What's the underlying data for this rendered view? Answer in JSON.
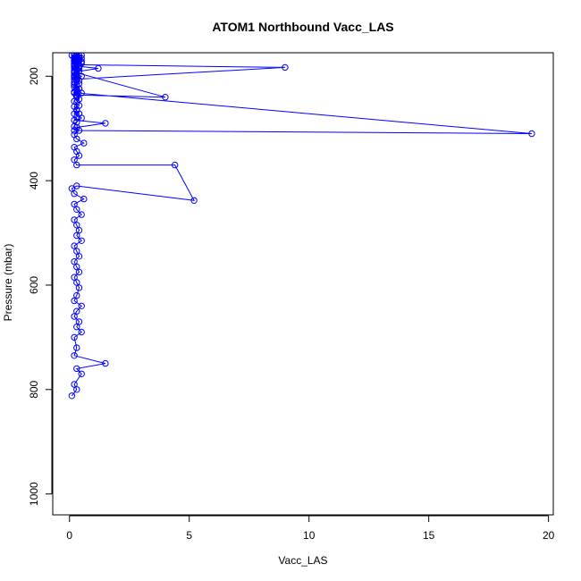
{
  "chart_data": {
    "type": "line",
    "title": "ATOM1 Northbound Vacc_LAS",
    "xlabel": "Vacc_LAS",
    "ylabel": "Pressure (mbar)",
    "xlim": [
      -0.7,
      20.2
    ],
    "ylim": [
      1040,
      155
    ],
    "y_inverted": true,
    "grid": false,
    "legend": "none",
    "x_ticks": [
      0,
      5,
      10,
      15,
      20
    ],
    "y_ticks": [
      200,
      400,
      600,
      800,
      1000
    ],
    "series_color": "#0000ff",
    "marker": "open-circle",
    "series": [
      {
        "x": [
          0.1,
          0.3,
          0.2,
          0.5,
          0.3,
          1.5,
          0.2,
          0.3,
          0.2,
          0.5,
          0.3,
          0.4,
          0.2,
          0.3,
          0.5,
          0.2,
          0.3,
          0.4,
          0.3,
          0.2,
          0.4,
          0.3,
          0.2,
          0.4,
          0.3,
          0.2,
          0.5,
          0.3,
          0.4,
          0.3,
          0.2,
          0.5,
          0.3,
          0.2,
          0.6,
          0.2,
          0.1,
          0.3,
          5.2,
          4.4,
          0.3,
          0.2,
          0.4,
          0.3,
          0.2,
          0.6,
          0.3,
          0.2,
          0.4,
          0.2,
          0.3,
          0.5,
          0.2,
          0.3,
          0.4,
          0.2,
          0.3,
          0.5,
          0.3,
          0.2,
          0.4,
          0.3,
          0.2,
          1.2,
          0.2,
          0.3,
          0.5,
          0.2,
          0.3,
          0.1,
          0.4,
          0.2,
          0.3,
          0.5,
          0.2,
          0.3,
          0.4,
          0.3,
          0.2,
          0.3,
          0.2,
          0.4,
          0.3,
          19.3,
          0.2,
          0.3,
          1.5,
          0.2,
          0.3,
          0.4,
          0.3,
          0.2,
          0.3,
          0.4,
          0.3,
          0.2,
          0.3,
          0.2,
          0.4,
          0.3,
          0.2,
          0.3,
          0.2,
          0.4,
          0.2,
          0.3,
          0.4,
          0.2,
          0.3,
          0.5,
          0.2,
          0.4,
          0.3,
          0.2,
          0.4,
          0.3,
          0.2,
          4.0,
          0.3,
          0.2,
          0.4,
          0.3,
          0.2,
          0.3,
          0.5,
          0.2,
          0.3,
          0.2,
          0.4,
          0.3,
          0.2,
          0.3,
          0.4,
          0.2,
          0.3,
          0.5,
          0.2,
          0.3,
          0.2,
          0.4,
          0.3,
          0.2,
          0.3,
          0.2,
          0.3,
          0.2,
          9.0,
          0.3,
          0.2,
          0.3,
          0.2,
          0.3,
          0.2,
          0.3
        ],
        "y": [
          812,
          800,
          790,
          770,
          760,
          750,
          735,
          720,
          700,
          690,
          680,
          670,
          660,
          650,
          640,
          630,
          620,
          605,
          595,
          585,
          575,
          565,
          555,
          545,
          535,
          525,
          515,
          505,
          495,
          485,
          475,
          465,
          455,
          445,
          435,
          425,
          415,
          410,
          438,
          370,
          370,
          360,
          352,
          344,
          336,
          328,
          320,
          312,
          304,
          296,
          288,
          280,
          272,
          264,
          256,
          248,
          240,
          232,
          224,
          216,
          208,
          200,
          192,
          185,
          180,
          176,
          172,
          168,
          165,
          160,
          160,
          165,
          170,
          175,
          180,
          186,
          190,
          196,
          200,
          208,
          216,
          224,
          232,
          310,
          304,
          298,
          290,
          284,
          278,
          272,
          266,
          258,
          250,
          244,
          238,
          232,
          226,
          220,
          214,
          208,
          202,
          196,
          190,
          184,
          178,
          174,
          170,
          166,
          162,
          160,
          164,
          168,
          172,
          176,
          180,
          186,
          192,
          240,
          236,
          230,
          224,
          218,
          212,
          206,
          200,
          194,
          188,
          184,
          180,
          176,
          172,
          168,
          164,
          160,
          162,
          166,
          170,
          174,
          178,
          182,
          186,
          190,
          194,
          198,
          202,
          206,
          183,
          178,
          172,
          168,
          164,
          160,
          158,
          156
        ]
      }
    ]
  }
}
